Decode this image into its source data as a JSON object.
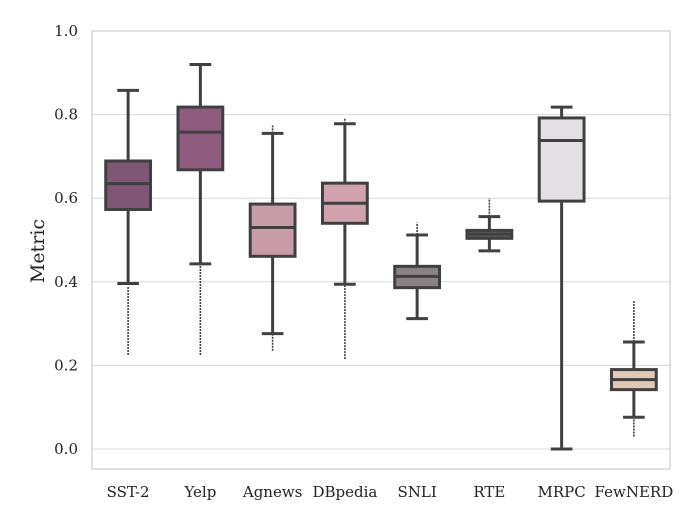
{
  "chart_data": {
    "type": "box",
    "title": "",
    "xlabel": "",
    "ylabel": "Metric",
    "ylim": [
      0.0,
      1.0
    ],
    "yticks": [
      "0.0",
      "0.2",
      "0.4",
      "0.6",
      "0.8",
      "1.0"
    ],
    "grid": "horizontal",
    "categories": [
      "SST-2",
      "Yelp",
      "Agnews",
      "DBpedia",
      "SNLI",
      "RTE",
      "MRPC",
      "FewNERD"
    ],
    "boxes": [
      {
        "category": "SST-2",
        "whisker_low": 0.396,
        "q1": 0.573,
        "median": 0.635,
        "q3": 0.689,
        "whisker_high": 0.858,
        "outliers_low": [
          0.225,
          0.39
        ],
        "outliers_high": [],
        "color": "#7f5676"
      },
      {
        "category": "Yelp",
        "whisker_low": 0.443,
        "q1": 0.668,
        "median": 0.758,
        "q3": 0.818,
        "whisker_high": 0.92,
        "outliers_low": [
          0.225,
          0.44
        ],
        "outliers_high": [],
        "color": "#8f5c7f"
      },
      {
        "category": "Agnews",
        "whisker_low": 0.276,
        "q1": 0.461,
        "median": 0.53,
        "q3": 0.586,
        "whisker_high": 0.755,
        "outliers_low": [
          0.235,
          0.275
        ],
        "outliers_high": [
          0.775
        ],
        "color": "#c89ba8"
      },
      {
        "category": "DBpedia",
        "whisker_low": 0.394,
        "q1": 0.54,
        "median": 0.588,
        "q3": 0.636,
        "whisker_high": 0.778,
        "outliers_low": [
          0.215,
          0.392
        ],
        "outliers_high": [
          0.792
        ],
        "color": "#d1a2ad"
      },
      {
        "category": "SNLI",
        "whisker_low": 0.312,
        "q1": 0.386,
        "median": 0.413,
        "q3": 0.437,
        "whisker_high": 0.512,
        "outliers_low": [],
        "outliers_high": [
          0.542
        ],
        "color": "#8a8385"
      },
      {
        "category": "RTE",
        "whisker_low": 0.474,
        "q1": 0.504,
        "median": 0.514,
        "q3": 0.523,
        "whisker_high": 0.556,
        "outliers_low": [],
        "outliers_high": [
          0.6
        ],
        "color": "#5f5c5e"
      },
      {
        "category": "MRPC",
        "whisker_low": 0.0,
        "q1": 0.593,
        "median": 0.738,
        "q3": 0.792,
        "whisker_high": 0.818,
        "outliers_low": [
          0.296
        ],
        "outliers_high": [],
        "color": "#e2e0e2"
      },
      {
        "category": "FewNERD",
        "whisker_low": 0.076,
        "q1": 0.142,
        "median": 0.166,
        "q3": 0.19,
        "whisker_high": 0.256,
        "outliers_low": [
          0.03,
          0.075
        ],
        "outliers_high": [
          0.355
        ],
        "color": "#e3c8b4"
      }
    ],
    "colors": {
      "edge": "#404040",
      "grid": "#d8d8d8",
      "frame": "#cccccc"
    }
  }
}
